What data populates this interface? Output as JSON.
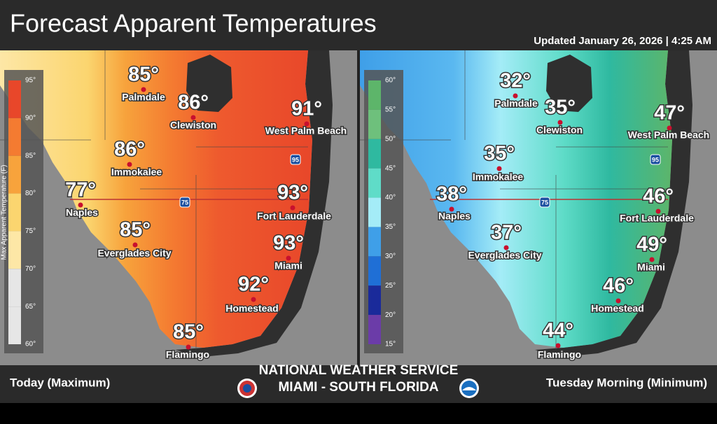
{
  "header": {
    "title": "Forecast Apparent Temperatures",
    "updated": "Updated  January 26, 2026 | 4:25 AM"
  },
  "maps": [
    {
      "caption": "Today (Maximum)",
      "legend": {
        "title": "Max Apparent Temperature (F)",
        "ticks": [
          "95°",
          "90°",
          "85°",
          "80°",
          "75°",
          "70°",
          "65°",
          "60°"
        ]
      },
      "interstates": [
        "75",
        "95"
      ],
      "cities": [
        {
          "name": "Palmdale",
          "temp": "85°"
        },
        {
          "name": "Clewiston",
          "temp": "86°"
        },
        {
          "name": "West Palm Beach",
          "temp": "91°"
        },
        {
          "name": "Immokalee",
          "temp": "86°"
        },
        {
          "name": "Naples",
          "temp": "77°"
        },
        {
          "name": "Fort Lauderdale",
          "temp": "93°"
        },
        {
          "name": "Everglades City",
          "temp": "85°"
        },
        {
          "name": "Miami",
          "temp": "93°"
        },
        {
          "name": "Homestead",
          "temp": "92°"
        },
        {
          "name": "Flamingo",
          "temp": "85°"
        }
      ]
    },
    {
      "caption": "Tuesday Morning (Minimum)",
      "legend": {
        "ticks": [
          "60°",
          "55°",
          "50°",
          "45°",
          "40°",
          "35°",
          "30°",
          "25°",
          "20°",
          "15°"
        ]
      },
      "interstates": [
        "75",
        "95"
      ],
      "cities": [
        {
          "name": "Palmdale",
          "temp": "32°"
        },
        {
          "name": "Clewiston",
          "temp": "35°"
        },
        {
          "name": "West Palm Beach",
          "temp": "47°"
        },
        {
          "name": "Immokalee",
          "temp": "35°"
        },
        {
          "name": "Naples",
          "temp": "38°"
        },
        {
          "name": "Fort Lauderdale",
          "temp": "46°"
        },
        {
          "name": "Everglades City",
          "temp": "37°"
        },
        {
          "name": "Miami",
          "temp": "49°"
        },
        {
          "name": "Homestead",
          "temp": "46°"
        },
        {
          "name": "Flamingo",
          "temp": "44°"
        }
      ]
    }
  ],
  "footer": {
    "agency": "NATIONAL WEATHER SERVICE",
    "office": "MIAMI - SOUTH FLORIDA"
  }
}
